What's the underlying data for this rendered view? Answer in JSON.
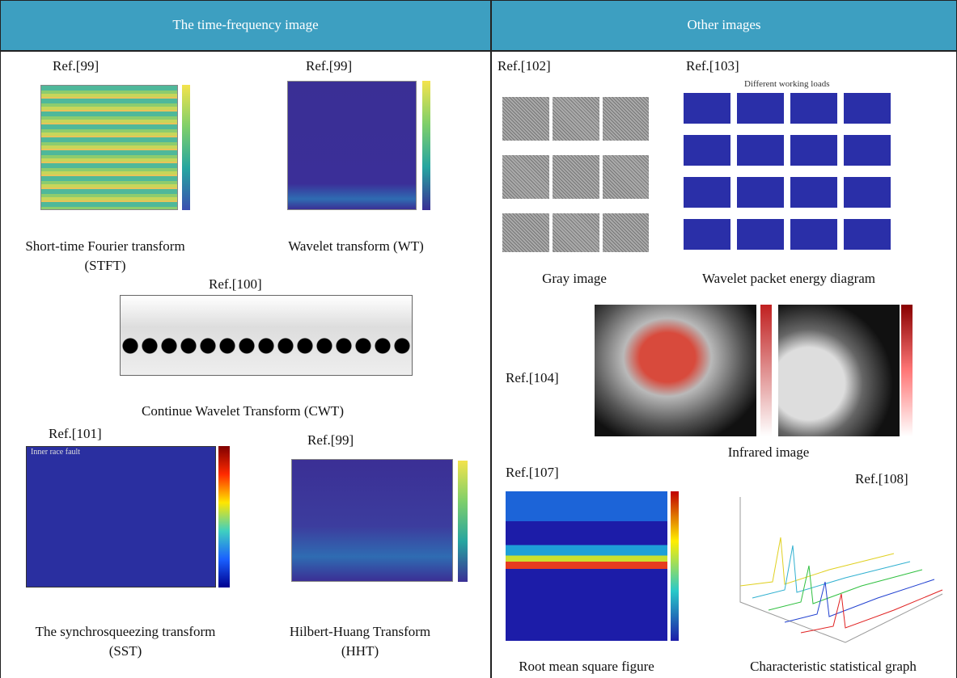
{
  "header": {
    "left": "The time-frequency image",
    "right": "Other images"
  },
  "left_panels": [
    {
      "ref": "Ref.[99]",
      "caption": "Short-time Fourier transform (STFT)"
    },
    {
      "ref": "Ref.[99]",
      "caption": "Wavelet transform (WT)"
    },
    {
      "ref": "Ref.[100]",
      "caption": "Continue Wavelet Transform (CWT)"
    },
    {
      "ref": "Ref.[101]",
      "caption": "The synchrosqueezing transform (SST)",
      "note": "Inner race fault"
    },
    {
      "ref": "Ref.[99]",
      "caption": "Hilbert-Huang Transform (HHT)"
    }
  ],
  "right_panels": [
    {
      "ref": "Ref.[102]",
      "caption": "Gray image"
    },
    {
      "ref": "Ref.[103]",
      "caption": "Wavelet packet energy diagram",
      "note": "Different working loads"
    },
    {
      "ref": "Ref.[104]",
      "caption": "Infrared image"
    },
    {
      "ref": "Ref.[107]",
      "caption": "Root mean square figure"
    },
    {
      "ref": "Ref.[108]",
      "caption": "Characteristic statistical graph"
    }
  ]
}
